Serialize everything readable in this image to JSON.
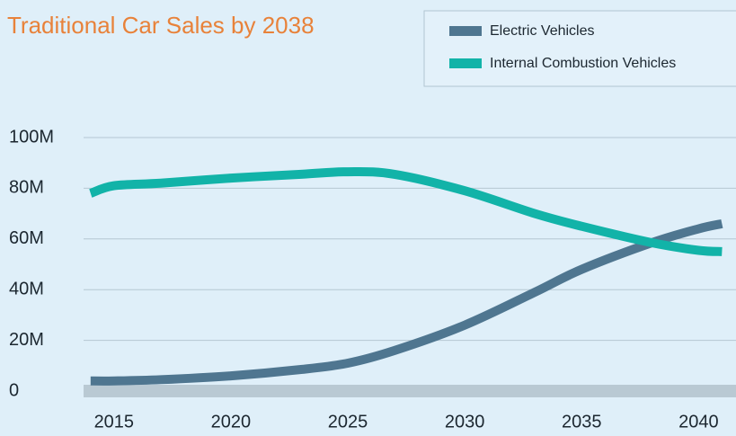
{
  "chart_data": {
    "type": "line",
    "title": "Traditional Car Sales by 2038",
    "x": [
      2014,
      2015,
      2017,
      2020,
      2023,
      2025,
      2027,
      2030,
      2033,
      2035,
      2038,
      2040,
      2041
    ],
    "series": [
      {
        "name": "Electric Vehicles",
        "color": "#4f7690",
        "values": [
          4000000,
          4000000,
          4500000,
          6000000,
          8500000,
          11000000,
          16000000,
          26000000,
          39000000,
          48000000,
          58500000,
          64000000,
          66000000
        ]
      },
      {
        "name": "Internal Combustion Vehicles",
        "color": "#12b3a8",
        "values": [
          78000000,
          81000000,
          82000000,
          84000000,
          85500000,
          86500000,
          85500000,
          79000000,
          70000000,
          65000000,
          58500000,
          55500000,
          55000000
        ]
      }
    ],
    "xlim": [
      2013.7,
      2041.6
    ],
    "xticks": [
      2015,
      2020,
      2025,
      2030,
      2035,
      2040
    ],
    "ylim": [
      0,
      100000000
    ],
    "yticks": [
      {
        "value": 0,
        "label": "0"
      },
      {
        "value": 20000000,
        "label": "20M"
      },
      {
        "value": 40000000,
        "label": "40M"
      },
      {
        "value": 60000000,
        "label": "60M"
      },
      {
        "value": 80000000,
        "label": "80M"
      },
      {
        "value": 100000000,
        "label": "100M"
      }
    ],
    "grid": true,
    "legend": "top-right"
  }
}
